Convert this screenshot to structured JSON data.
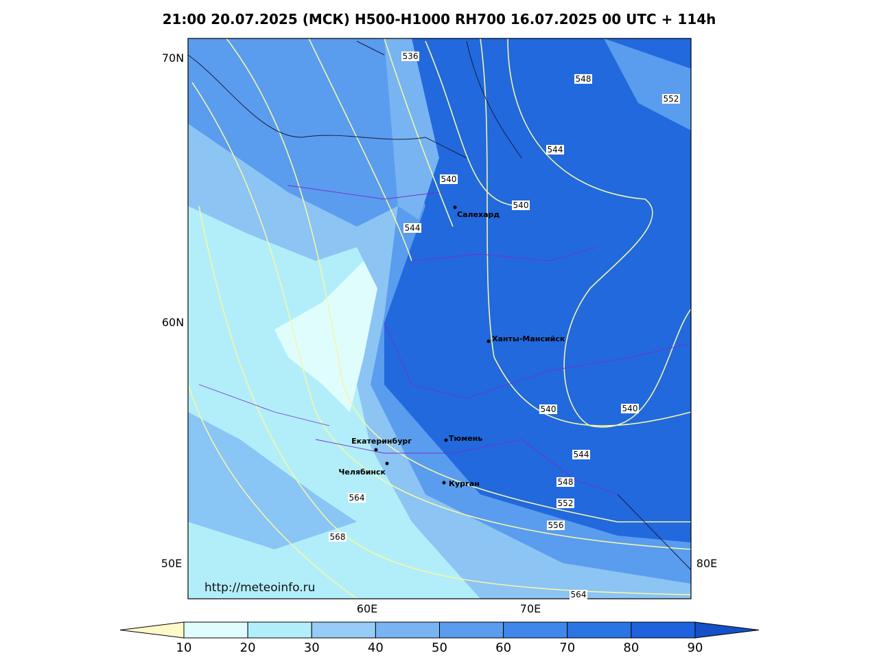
{
  "title": "21:00 20.07.2025 (МСК) H500-H1000 RH700 16.07.2025 00 UTC + 114h",
  "map": {
    "lat_labels": [
      "70N",
      "60N",
      "50E"
    ],
    "lon_labels": [
      "60E",
      "70E",
      "80E"
    ],
    "contour_labels": [
      "536",
      "548",
      "552",
      "544",
      "540",
      "540",
      "544",
      "540",
      "540",
      "544",
      "548",
      "552",
      "556",
      "564",
      "568",
      "564"
    ],
    "cities": [
      "Салехард",
      "Ханты-Мансийск",
      "Тюмень",
      "Екатеринбург",
      "Челябинск",
      "Курган"
    ],
    "url": "http://meteoinfo.ru"
  },
  "colorbar": {
    "ticks": [
      10,
      20,
      30,
      40,
      50,
      60,
      70,
      80,
      90
    ],
    "colors": [
      "#fff8c8",
      "#e0fdfe",
      "#b2eefa",
      "#96ccf5",
      "#78b4f2",
      "#5a9cee",
      "#3f87ea",
      "#2b74e3",
      "#1e63dd",
      "#1450c8"
    ]
  }
}
